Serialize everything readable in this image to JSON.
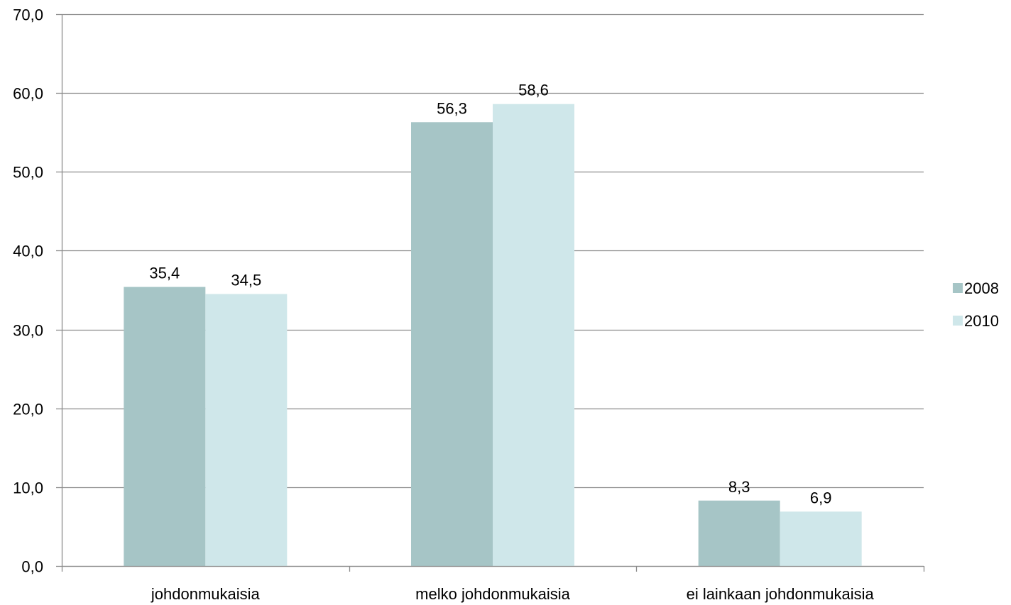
{
  "chart_data": {
    "type": "bar",
    "categories": [
      "johdonmukaisia",
      "melko johdonmukaisia",
      "ei lainkaan johdonmukaisia"
    ],
    "series": [
      {
        "name": "2008",
        "values": [
          35.4,
          56.3,
          8.3
        ],
        "labels": [
          "35,4",
          "56,3",
          "8,3"
        ],
        "color": "#a6c5c6"
      },
      {
        "name": "2010",
        "values": [
          34.5,
          58.6,
          6.9
        ],
        "labels": [
          "34,5",
          "58,6",
          "6,9"
        ],
        "color": "#cfe7ea"
      }
    ],
    "ylim": [
      0,
      70
    ],
    "yticks": [
      0,
      10,
      20,
      30,
      40,
      50,
      60,
      70
    ],
    "ytick_labels": [
      "0,0",
      "10,0",
      "20,0",
      "30,0",
      "40,0",
      "50,0",
      "60,0",
      "70,0"
    ],
    "grid": true,
    "grid_color": "#8c8c8c",
    "legend_position": "right",
    "title": "",
    "xlabel": "",
    "ylabel": ""
  }
}
